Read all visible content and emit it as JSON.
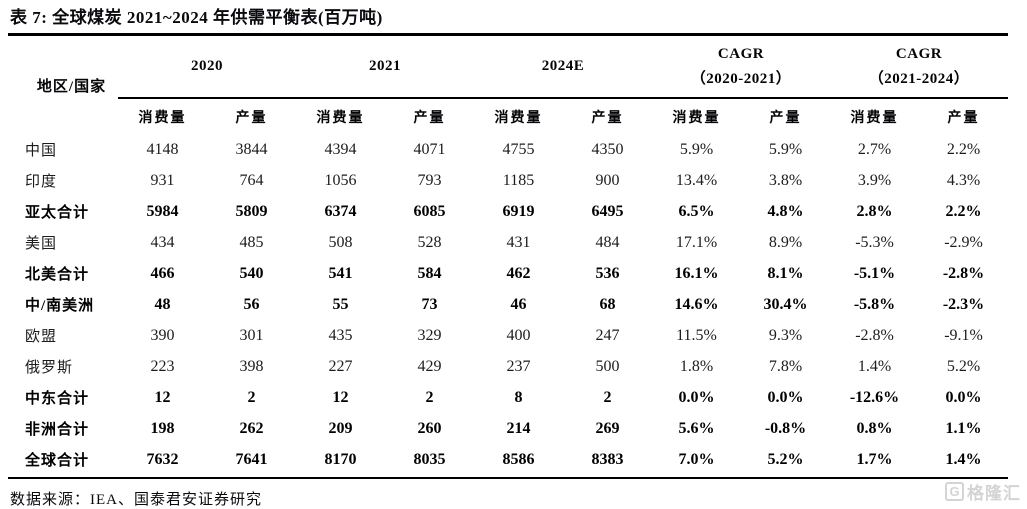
{
  "title": "表 7: 全球煤炭 2021~2024 年供需平衡表(百万吨)",
  "source": "数据来源：IEA、国泰君安证券研究",
  "watermark": {
    "icon": "G",
    "text": "格隆汇"
  },
  "colors": {
    "accent_red": "#ee0000",
    "text_black": "#09090e",
    "watermark_gray": "#d4d4d6"
  },
  "table": {
    "row_header_label": "地区/国家",
    "groups": [
      {
        "label": "2020",
        "label2": "",
        "sub": [
          "消费量",
          "产量"
        ]
      },
      {
        "label": "2021",
        "label2": "",
        "sub": [
          "消费量",
          "产量"
        ]
      },
      {
        "label": "2024E",
        "label2": "",
        "sub": [
          "消费量",
          "产量"
        ]
      },
      {
        "label": "CAGR",
        "label2": "（2020-2021）",
        "sub": [
          "消费量",
          "产量"
        ]
      },
      {
        "label": "CAGR",
        "label2": "（2021-2024）",
        "sub": [
          "消费量",
          "产量"
        ]
      }
    ],
    "rows": [
      {
        "label": "中国",
        "bold": false,
        "values": [
          "4148",
          "3844",
          "4394",
          "4071",
          "4755",
          "4350",
          "5.9%",
          "5.9%",
          "2.7%",
          "2.2%"
        ],
        "highlight_indices": []
      },
      {
        "label": "印度",
        "bold": false,
        "values": [
          "931",
          "764",
          "1056",
          "793",
          "1185",
          "900",
          "13.4%",
          "3.8%",
          "3.9%",
          "4.3%"
        ],
        "highlight_indices": []
      },
      {
        "label": "亚太合计",
        "bold": true,
        "values": [
          "5984",
          "5809",
          "6374",
          "6085",
          "6919",
          "6495",
          "6.5%",
          "4.8%",
          "2.8%",
          "2.2%"
        ],
        "highlight_indices": []
      },
      {
        "label": "美国",
        "bold": false,
        "values": [
          "434",
          "485",
          "508",
          "528",
          "431",
          "484",
          "17.1%",
          "8.9%",
          "-5.3%",
          "-2.9%"
        ],
        "highlight_indices": []
      },
      {
        "label": "北美合计",
        "bold": true,
        "values": [
          "466",
          "540",
          "541",
          "584",
          "462",
          "536",
          "16.1%",
          "8.1%",
          "-5.1%",
          "-2.8%"
        ],
        "highlight_indices": []
      },
      {
        "label": "中/南美洲",
        "bold": true,
        "values": [
          "48",
          "56",
          "55",
          "73",
          "46",
          "68",
          "14.6%",
          "30.4%",
          "-5.8%",
          "-2.3%"
        ],
        "highlight_indices": []
      },
      {
        "label": "欧盟",
        "bold": false,
        "values": [
          "390",
          "301",
          "435",
          "329",
          "400",
          "247",
          "11.5%",
          "9.3%",
          "-2.8%",
          "-9.1%"
        ],
        "highlight_indices": []
      },
      {
        "label": "俄罗斯",
        "bold": false,
        "values": [
          "223",
          "398",
          "227",
          "429",
          "237",
          "500",
          "1.8%",
          "7.8%",
          "1.4%",
          "5.2%"
        ],
        "highlight_indices": []
      },
      {
        "label": "中东合计",
        "bold": true,
        "values": [
          "12",
          "2",
          "12",
          "2",
          "8",
          "2",
          "0.0%",
          "0.0%",
          "-12.6%",
          "0.0%"
        ],
        "highlight_indices": []
      },
      {
        "label": "非洲合计",
        "bold": true,
        "values": [
          "198",
          "262",
          "209",
          "260",
          "214",
          "269",
          "5.6%",
          "-0.8%",
          "0.8%",
          "1.1%"
        ],
        "highlight_indices": []
      },
      {
        "label": "全球合计",
        "bold": true,
        "values": [
          "7632",
          "7641",
          "8170",
          "8035",
          "8586",
          "8383",
          "7.0%",
          "5.2%",
          "1.7%",
          "1.4%"
        ],
        "highlight_indices": [
          8,
          9
        ]
      }
    ]
  }
}
